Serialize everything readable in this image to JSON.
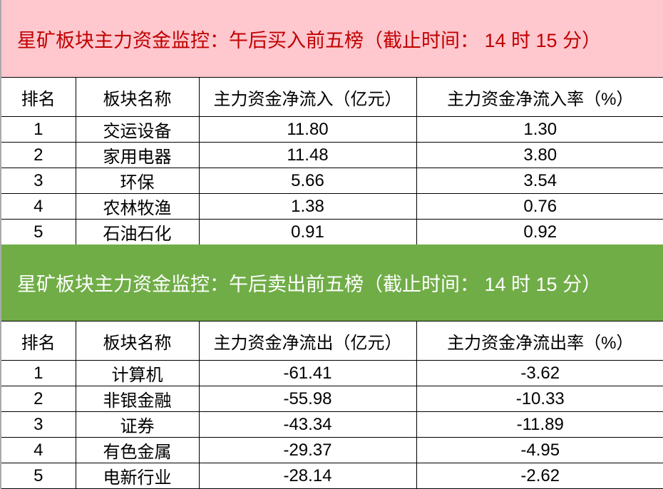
{
  "buy": {
    "title": "星矿板块主力资金监控：午后买入前五榜（截止时间： 14 时 15 分）",
    "headers": [
      "排名",
      "板块名称",
      "主力资金净流入（亿元）",
      "主力资金净流入率（%）"
    ],
    "rows": [
      [
        "1",
        "交运设备",
        "11.80",
        "1.30"
      ],
      [
        "2",
        "家用电器",
        "11.48",
        "3.80"
      ],
      [
        "3",
        "环保",
        "5.66",
        "3.54"
      ],
      [
        "4",
        "农林牧渔",
        "1.38",
        "0.76"
      ],
      [
        "5",
        "石油石化",
        "0.91",
        "0.92"
      ]
    ]
  },
  "sell": {
    "title": "星矿板块主力资金监控：午后卖出前五榜（截止时间： 14 时 15 分）",
    "headers": [
      "排名",
      "板块名称",
      "主力资金净流出（亿元）",
      "主力资金净流出率（%）"
    ],
    "rows": [
      [
        "1",
        "计算机",
        "-61.41",
        "-3.62"
      ],
      [
        "2",
        "非银金融",
        "-55.98",
        "-10.33"
      ],
      [
        "3",
        "证券",
        "-43.34",
        "-11.89"
      ],
      [
        "4",
        "有色金属",
        "-29.37",
        "-4.95"
      ],
      [
        "5",
        "电新行业",
        "-28.14",
        "-2.62"
      ]
    ]
  },
  "colors": {
    "buy_band": "#FFC7CE",
    "buy_text": "#C00000",
    "sell_band": "#70AD47",
    "sell_text": "#FFFFFF"
  }
}
